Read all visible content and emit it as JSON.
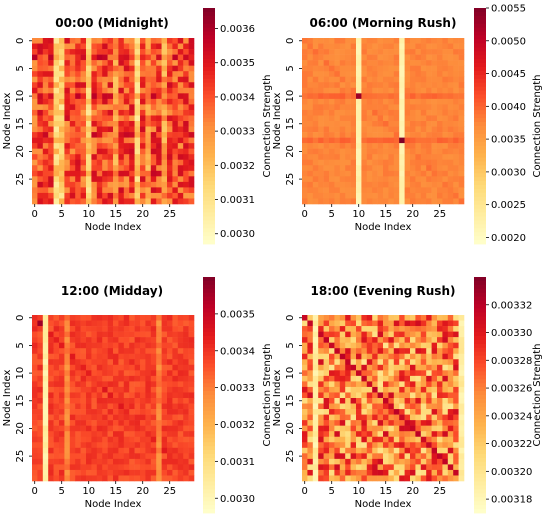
{
  "figure": {
    "panels": [
      {
        "title": "00:00 (Midnight)",
        "xlabel": "Node Index",
        "ylabel": "Node Index",
        "cbar_label": "Connection Strength",
        "ticks": [
          "0",
          "5",
          "10",
          "15",
          "20",
          "25"
        ],
        "cbar_ticks": [
          "0.0030",
          "0.0031",
          "0.0032",
          "0.0033",
          "0.0034",
          "0.0035",
          "0.0036"
        ]
      },
      {
        "title": "06:00 (Morning Rush)",
        "xlabel": "Node Index",
        "ylabel": "Node Index",
        "cbar_label": "Connection Strength",
        "ticks": [
          "0",
          "5",
          "10",
          "15",
          "20",
          "25"
        ],
        "cbar_ticks": [
          "0.0020",
          "0.0025",
          "0.0030",
          "0.0035",
          "0.0040",
          "0.0045",
          "0.0050",
          "0.0055"
        ]
      },
      {
        "title": "12:00 (Midday)",
        "xlabel": "Node Index",
        "ylabel": "Node Index",
        "cbar_label": "Connection Strength",
        "ticks": [
          "0",
          "5",
          "10",
          "15",
          "20",
          "25"
        ],
        "cbar_ticks": [
          "0.0030",
          "0.0031",
          "0.0032",
          "0.0033",
          "0.0034",
          "0.0035"
        ]
      },
      {
        "title": "18:00 (Evening Rush)",
        "xlabel": "Node Index",
        "ylabel": "Node Index",
        "cbar_label": "Connection Strength",
        "ticks": [
          "0",
          "5",
          "10",
          "15",
          "20",
          "25"
        ],
        "cbar_ticks": [
          "0.00318",
          "0.00320",
          "0.00322",
          "0.00324",
          "0.00326",
          "0.00328",
          "0.00330",
          "0.00332"
        ]
      }
    ]
  },
  "chart_data": [
    {
      "type": "heatmap",
      "title": "00:00 (Midnight)",
      "xlabel": "Node Index",
      "ylabel": "Node Index",
      "n": 30,
      "colormap": "YlOrRd",
      "vrange": [
        0.00297,
        0.00366
      ],
      "cbar_label": "Connection Strength",
      "summary": {
        "typical": 0.00338,
        "low_columns": [
          4,
          5,
          10,
          19
        ],
        "low_value": 0.00312
      },
      "values": "approximate 30x30 connection matrix, mostly 0.0032-0.0035 with pale columns near nodes 4, 5, 10, 19"
    },
    {
      "type": "heatmap",
      "title": "06:00 (Morning Rush)",
      "xlabel": "Node Index",
      "ylabel": "Node Index",
      "n": 30,
      "colormap": "YlOrRd",
      "vrange": [
        0.0019,
        0.0055
      ],
      "cbar_label": "Connection Strength",
      "summary": {
        "typical": 0.0037,
        "low_columns": [
          10,
          18
        ],
        "low_value": 0.0022,
        "peaks": [
          [
            10,
            10,
            0.0053
          ],
          [
            18,
            18,
            0.0055
          ]
        ]
      },
      "values": "approximate 30x30 matrix, uniform ~0.0037 with pale columns at 10 and 18 and dark diagonal cells at (10,10) and (18,18)"
    },
    {
      "type": "heatmap",
      "title": "12:00 (Midday)",
      "xlabel": "Node Index",
      "ylabel": "Node Index",
      "n": 30,
      "colormap": "YlOrRd",
      "vrange": [
        0.00296,
        0.0036
      ],
      "cbar_label": "Connection Strength",
      "summary": {
        "typical": 0.00338,
        "low_columns": [
          2
        ],
        "low_value": 0.00302,
        "peaks": [
          [
            1,
            1,
            0.00356
          ]
        ]
      },
      "values": "approximate 30x30 matrix, uniform ~0.00338 with a pale column at node 2"
    },
    {
      "type": "heatmap",
      "title": "18:00 (Evening Rush)",
      "xlabel": "Node Index",
      "ylabel": "Node Index",
      "n": 30,
      "colormap": "YlOrRd",
      "vrange": [
        0.00317,
        0.00334
      ],
      "cbar_label": "Connection Strength",
      "summary": {
        "typical": 0.00326,
        "low_columns": [
          2,
          29
        ],
        "low_value": 0.00319,
        "diagonal": 0.00331
      },
      "values": "approximate 30x30 matrix, ~0.00326 with a darker main diagonal and pale columns at nodes 2 and 29"
    }
  ]
}
